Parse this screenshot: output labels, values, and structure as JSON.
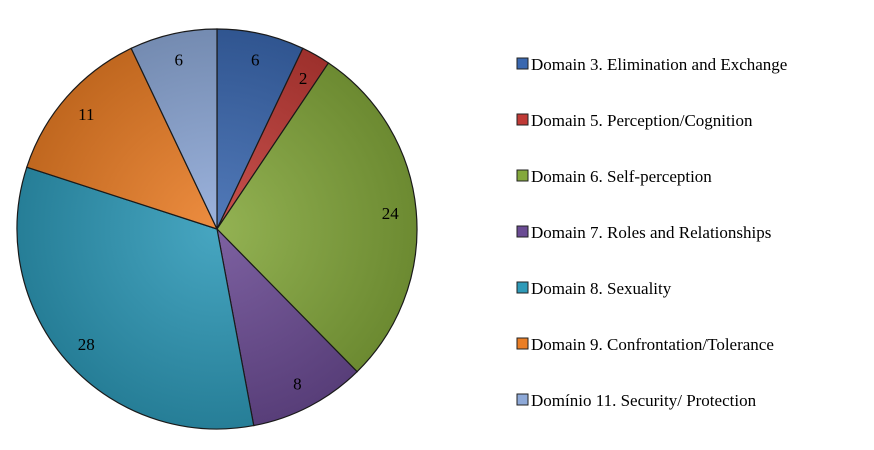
{
  "chart_data": {
    "type": "pie",
    "title": "",
    "start_angle_deg": 0,
    "direction": "clockwise",
    "legend_position": "right",
    "slices": [
      {
        "name": "Domain 3. Elimination and Exchange",
        "value": 6,
        "label": "6",
        "color": "#3a68b0"
      },
      {
        "name": "Domain 5. Perception/Cognition",
        "value": 2,
        "label": "2",
        "color": "#c03a36"
      },
      {
        "name": "Domain 6. Self-perception",
        "value": 24,
        "label": "24",
        "color": "#84a83c"
      },
      {
        "name": "Domain 7. Roles and Relationships",
        "value": 8,
        "label": "8",
        "color": "#6b4c94"
      },
      {
        "name": "Domain 8. Sexuality",
        "value": 28,
        "label": "28",
        "color": "#2e9ab8"
      },
      {
        "name": "Domain 9. Confrontation/Tolerance",
        "value": 11,
        "label": "11",
        "color": "#ea7e26"
      },
      {
        "name": "Domínio 11. Security/ Protection",
        "value": 6,
        "label": "6",
        "color": "#8ea9d8"
      }
    ]
  }
}
